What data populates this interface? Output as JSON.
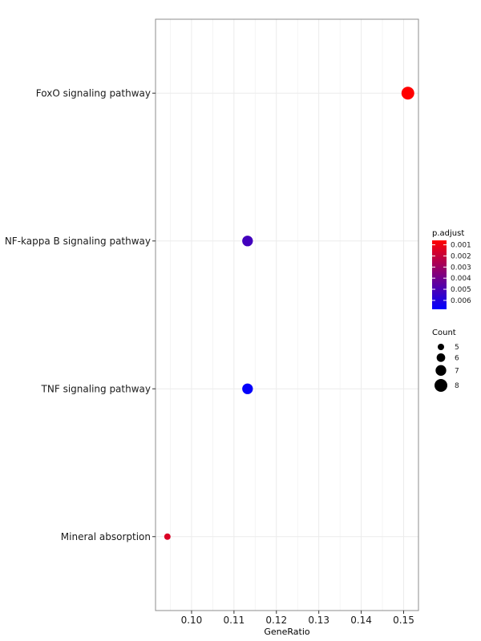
{
  "chart_data": {
    "type": "scatter",
    "xlabel": "GeneRatio",
    "ylabel": "",
    "xlim": [
      0.0915,
      0.1535
    ],
    "xticks": [
      "0.10",
      "0.11",
      "0.12",
      "0.13",
      "0.14",
      "0.15"
    ],
    "xtick_values": [
      0.1,
      0.11,
      0.12,
      0.13,
      0.14,
      0.15
    ],
    "categories": [
      "FoxO signaling pathway",
      "NF-kappa B signaling pathway",
      "TNF signaling pathway",
      "Mineral absorption"
    ],
    "points": [
      {
        "category": "FoxO signaling pathway",
        "x": 0.151,
        "count": 8,
        "p_adjust": 0.0006
      },
      {
        "category": "NF-kappa B signaling pathway",
        "x": 0.1132,
        "count": 7,
        "p_adjust": 0.0052
      },
      {
        "category": "TNF signaling pathway",
        "x": 0.1132,
        "count": 7,
        "p_adjust": 0.0067
      },
      {
        "category": "Mineral absorption",
        "x": 0.0943,
        "count": 5,
        "p_adjust": 0.0015
      }
    ],
    "grid": true,
    "color_legend": {
      "title": "p.adjust",
      "labels": [
        "0.001",
        "0.002",
        "0.003",
        "0.004",
        "0.005",
        "0.006"
      ],
      "values": [
        0.001,
        0.002,
        0.003,
        0.004,
        0.005,
        0.006
      ],
      "range": [
        0.0006,
        0.0068
      ],
      "low_color": "#ff0000",
      "high_color": "#0000ff"
    },
    "size_legend": {
      "title": "Count",
      "labels": [
        "5",
        "6",
        "7",
        "8"
      ],
      "values": [
        5,
        6,
        7,
        8
      ]
    },
    "legend_position": "right"
  }
}
